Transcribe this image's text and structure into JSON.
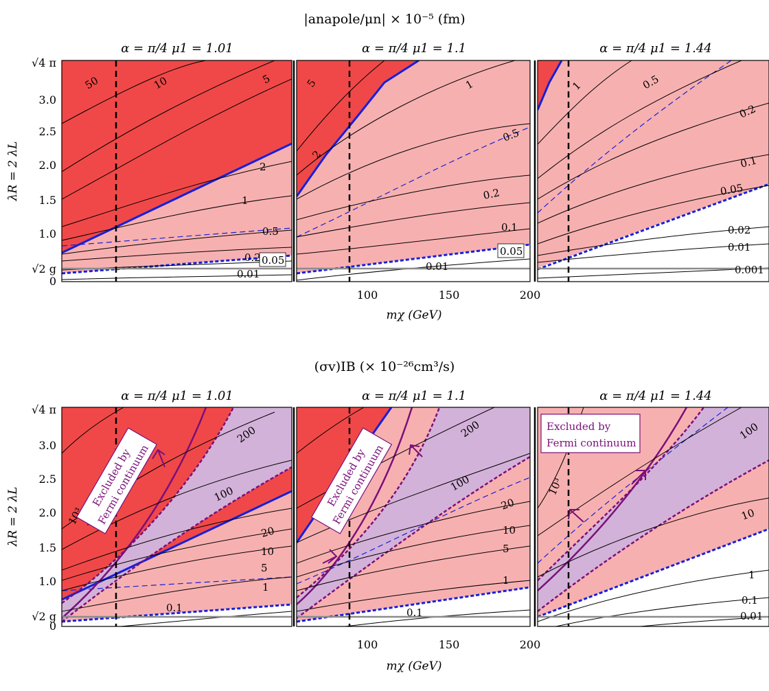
{
  "figure": {
    "top_title": "|anapole/μn| × 10⁻⁵ (fm)",
    "bottom_title": "(σv)IB (× 10⁻²⁶cm³/s)",
    "xlabel": "mχ (GeV)",
    "ylabel": "λR = 2 λL",
    "x_ticks": [
      "100",
      "150",
      "200"
    ],
    "y_ticks": [
      "0",
      "√2 g",
      "1.0",
      "1.5",
      "2.0",
      "2.5",
      "3.0",
      "√4 π"
    ],
    "panel_titles": [
      "α = π/4    μ1 = 1.01",
      "α = π/4    μ1 = 1.1",
      "α = π/4    μ1 = 1.44"
    ],
    "fermi_label_line1": "Excluded by",
    "fermi_label_line2": "Fermi continuum",
    "colors": {
      "dark_red": "#f04848",
      "light_red": "#f7b0b0",
      "purple_fill": "#d3b2d9",
      "blue": "#1520d8",
      "purple_line": "#7a0f7a",
      "gray_line": "#8c8c8c"
    }
  },
  "chart_data": [
    {
      "type": "contour",
      "title": "|anapole/μn| × 10⁻⁵ (fm)",
      "xlabel": "mχ (GeV)",
      "ylabel": "λR = 2 λL",
      "ylim": [
        0,
        3.545
      ],
      "panels": [
        {
          "subtitle": "α = π/4    μ1 = 1.01",
          "xlim": [
            10,
            200
          ],
          "contour_levels": [
            "50",
            "10",
            "5",
            "2",
            "1",
            "0.5",
            "0.2",
            "0.05",
            "0.01"
          ],
          "vertical_marker_x": 55
        },
        {
          "subtitle": "α = π/4    μ1 = 1.1",
          "xlim": [
            60,
            200
          ],
          "contour_levels": [
            "5",
            "2",
            "1",
            "0.5",
            "0.2",
            "0.1",
            "0.05",
            "0.01"
          ],
          "vertical_marker_x": 90
        },
        {
          "subtitle": "α = π/4    μ1 = 1.44",
          "xlim": [
            200,
            400
          ],
          "contour_levels": [
            "1",
            "0.5",
            "0.2",
            "0.1",
            "0.05",
            "0.02",
            "0.01",
            "0.001"
          ],
          "vertical_marker_x": 225
        }
      ]
    },
    {
      "type": "contour",
      "title": "(σv)IB (× 10⁻²⁶cm³/s)",
      "xlabel": "mχ (GeV)",
      "ylabel": "λR = 2 λL",
      "ylim": [
        0,
        3.545
      ],
      "panels": [
        {
          "subtitle": "α = π/4    μ1 = 1.01",
          "xlim": [
            10,
            200
          ],
          "contour_levels": [
            "10³",
            "200",
            "100",
            "20",
            "10",
            "5",
            "1",
            "0.1"
          ],
          "vertical_marker_x": 55
        },
        {
          "subtitle": "α = π/4    μ1 = 1.1",
          "xlim": [
            60,
            200
          ],
          "contour_levels": [
            "200",
            "100",
            "20",
            "10",
            "5",
            "1",
            "0.1"
          ],
          "vertical_marker_x": 90
        },
        {
          "subtitle": "α = π/4    μ1 = 1.44",
          "xlim": [
            200,
            400
          ],
          "contour_levels": [
            "10³",
            "100",
            "10",
            "1",
            "0.1",
            "0.01"
          ],
          "vertical_marker_x": 225
        }
      ]
    }
  ]
}
